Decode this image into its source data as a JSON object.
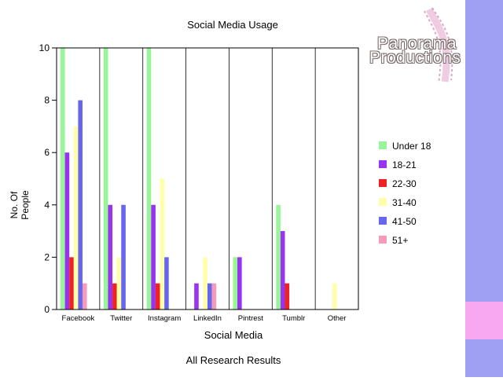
{
  "colors": {
    "side_top": "#9f9ff3",
    "side_mid": "#f8a8ee",
    "side_bot": "#9f9ff3"
  },
  "logo": {
    "line1": "Panorama",
    "line2": "Productions"
  },
  "chart_data": {
    "type": "bar",
    "title": "Social Media Usage",
    "subtitle": "All Research Results",
    "xlabel": "Social Media",
    "ylabel": "No. Of People",
    "ylim": [
      0,
      10
    ],
    "yticks": [
      "0",
      "2",
      "4",
      "6",
      "8",
      "10"
    ],
    "grid": "vertical separators",
    "legend_position": "right",
    "categories": [
      "Facebook",
      "Twitter",
      "Instagram",
      "LinkedIn",
      "Pintrest",
      "Tumblr",
      "Other"
    ],
    "series": [
      {
        "name": "Under 18",
        "color": "#99f599",
        "values": [
          10,
          10,
          10,
          0,
          2,
          4,
          0
        ]
      },
      {
        "name": "18-21",
        "color": "#9933ee",
        "values": [
          6,
          4,
          4,
          1,
          2,
          3,
          0
        ]
      },
      {
        "name": "22-30",
        "color": "#ee2222",
        "values": [
          2,
          1,
          1,
          0,
          0,
          1,
          0
        ]
      },
      {
        "name": "31-40",
        "color": "#ffffaa",
        "values": [
          7,
          2,
          5,
          2,
          0,
          0,
          1
        ]
      },
      {
        "name": "41-50",
        "color": "#6666ee",
        "values": [
          8,
          4,
          2,
          1,
          0,
          0,
          0
        ]
      },
      {
        "name": "51+",
        "color": "#f799bb",
        "values": [
          1,
          0,
          0,
          1,
          0,
          0,
          0
        ]
      }
    ]
  }
}
